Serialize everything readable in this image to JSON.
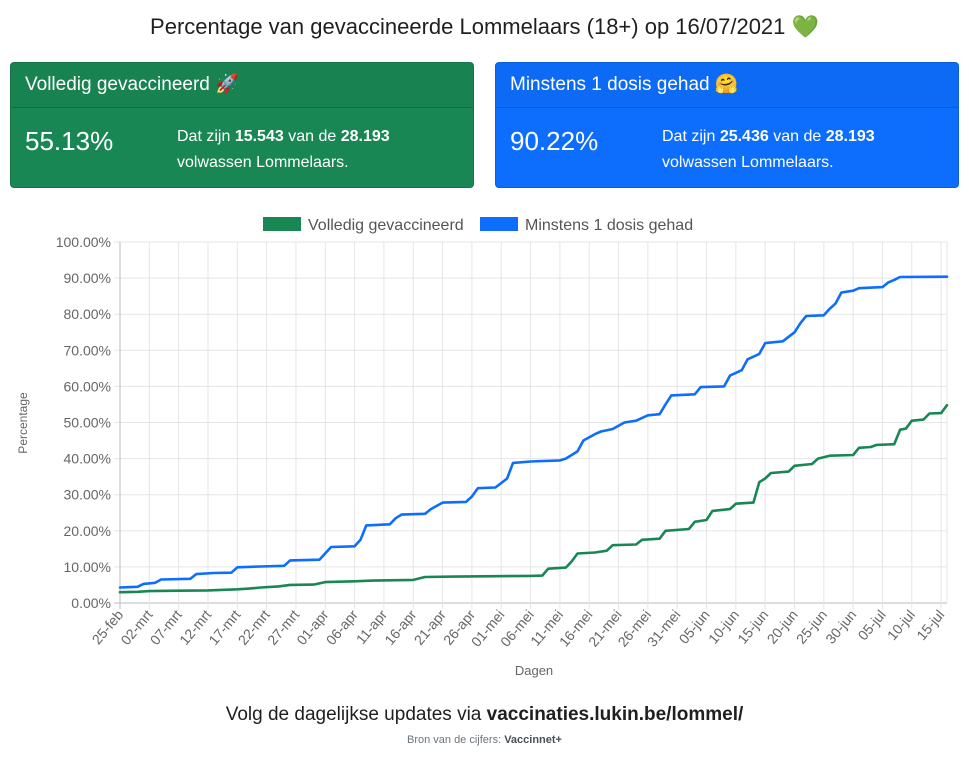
{
  "title": "Percentage van gevaccineerde Lommelaars (18+) op 16/07/2021",
  "title_icon": "💚",
  "cards": {
    "full": {
      "header": "Volledig gevaccineerd",
      "icon": "🚀",
      "percentage": "55.13%",
      "desc_prefix": "Dat zijn",
      "count": "15.543",
      "desc_mid": "van de",
      "total": "28.193",
      "desc_suffix": "volwassen Lommelaars.",
      "color": "#198754"
    },
    "one_dose": {
      "header": "Minstens 1 dosis gehad",
      "icon": "🤗",
      "percentage": "90.22%",
      "desc_prefix": "Dat zijn",
      "count": "25.436",
      "desc_mid": "van de",
      "total": "28.193",
      "desc_suffix": "volwassen Lommelaars.",
      "color": "#0d6efd"
    }
  },
  "footer": {
    "text": "Volg de dagelijkse updates via",
    "link": "vaccinaties.lukin.be/lommel/",
    "source_label": "Bron van de cijfers:",
    "source": "Vaccinnet+"
  },
  "chart_data": {
    "type": "line",
    "xlabel": "Dagen",
    "ylabel": "Percentage",
    "ylim": [
      0,
      100
    ],
    "yticks": [
      "0.00%",
      "10.00%",
      "20.00%",
      "30.00%",
      "40.00%",
      "50.00%",
      "60.00%",
      "70.00%",
      "80.00%",
      "90.00%",
      "100.00%"
    ],
    "x_ticks": [
      "25-feb",
      "02-mrt",
      "07-mrt",
      "12-mrt",
      "17-mrt",
      "22-mrt",
      "27-mrt",
      "01-apr",
      "06-apr",
      "11-apr",
      "16-apr",
      "21-apr",
      "26-apr",
      "01-mei",
      "06-mei",
      "11-mei",
      "16-mei",
      "21-mei",
      "26-mei",
      "31-mei",
      "05-jun",
      "10-jun",
      "15-jun",
      "20-jun",
      "25-jun",
      "30-jun",
      "05-jul",
      "10-jul",
      "15-jul"
    ],
    "x_range_days": [
      0,
      141
    ],
    "grid": true,
    "legend_position": "top",
    "series": [
      {
        "name": "Volledig gevaccineerd",
        "color": "#198754",
        "points": [
          [
            0,
            3.0
          ],
          [
            3,
            3.1
          ],
          [
            5,
            3.3
          ],
          [
            10,
            3.4
          ],
          [
            15,
            3.5
          ],
          [
            20,
            3.8
          ],
          [
            22,
            4.0
          ],
          [
            24,
            4.3
          ],
          [
            27,
            4.6
          ],
          [
            29,
            5.0
          ],
          [
            33,
            5.1
          ],
          [
            35,
            5.8
          ],
          [
            40,
            6.0
          ],
          [
            43,
            6.2
          ],
          [
            50,
            6.4
          ],
          [
            52,
            7.2
          ],
          [
            57,
            7.3
          ],
          [
            62,
            7.4
          ],
          [
            70,
            7.5
          ],
          [
            72,
            7.6
          ],
          [
            73,
            9.5
          ],
          [
            76,
            9.8
          ],
          [
            77,
            11.5
          ],
          [
            78,
            13.7
          ],
          [
            81,
            14.0
          ],
          [
            83,
            14.5
          ],
          [
            84,
            16.0
          ],
          [
            88,
            16.2
          ],
          [
            89,
            17.5
          ],
          [
            92,
            17.8
          ],
          [
            93,
            20.0
          ],
          [
            97,
            20.5
          ],
          [
            98,
            22.5
          ],
          [
            100,
            23.0
          ],
          [
            101,
            25.5
          ],
          [
            104,
            26.0
          ],
          [
            105,
            27.5
          ],
          [
            108,
            27.8
          ],
          [
            109,
            33.5
          ],
          [
            110,
            34.5
          ],
          [
            111,
            36.0
          ],
          [
            114,
            36.4
          ],
          [
            115,
            38.0
          ],
          [
            118,
            38.5
          ],
          [
            119,
            40.0
          ],
          [
            121,
            40.8
          ],
          [
            125,
            41.0
          ],
          [
            126,
            43.0
          ],
          [
            128,
            43.2
          ],
          [
            129,
            43.8
          ],
          [
            132,
            44.0
          ],
          [
            133,
            48.0
          ],
          [
            134,
            48.3
          ],
          [
            135,
            50.5
          ],
          [
            137,
            50.8
          ],
          [
            138,
            52.5
          ],
          [
            140,
            52.6
          ],
          [
            141,
            54.8
          ]
        ]
      },
      {
        "name": "Minstens 1 dosis gehad",
        "color": "#0d6efd",
        "points": [
          [
            0,
            4.3
          ],
          [
            3,
            4.5
          ],
          [
            4,
            5.3
          ],
          [
            6,
            5.6
          ],
          [
            7,
            6.5
          ],
          [
            12,
            6.7
          ],
          [
            13,
            8.0
          ],
          [
            16,
            8.3
          ],
          [
            19,
            8.4
          ],
          [
            20,
            9.9
          ],
          [
            24,
            10.1
          ],
          [
            28,
            10.3
          ],
          [
            29,
            11.8
          ],
          [
            34,
            12.0
          ],
          [
            36,
            15.5
          ],
          [
            40,
            15.7
          ],
          [
            41,
            17.5
          ],
          [
            42,
            21.5
          ],
          [
            46,
            21.8
          ],
          [
            47,
            23.5
          ],
          [
            48,
            24.5
          ],
          [
            52,
            24.7
          ],
          [
            53,
            26.0
          ],
          [
            55,
            27.8
          ],
          [
            59,
            28.0
          ],
          [
            60,
            29.5
          ],
          [
            61,
            31.8
          ],
          [
            64,
            32.0
          ],
          [
            66,
            34.5
          ],
          [
            67,
            38.8
          ],
          [
            70,
            39.2
          ],
          [
            75,
            39.5
          ],
          [
            76,
            40.0
          ],
          [
            78,
            42.0
          ],
          [
            79,
            45.0
          ],
          [
            81,
            46.8
          ],
          [
            82,
            47.5
          ],
          [
            84,
            48.2
          ],
          [
            86,
            50.0
          ],
          [
            88,
            50.5
          ],
          [
            90,
            52.0
          ],
          [
            92,
            52.3
          ],
          [
            93,
            55.0
          ],
          [
            94,
            57.5
          ],
          [
            98,
            57.8
          ],
          [
            99,
            59.8
          ],
          [
            103,
            60.0
          ],
          [
            104,
            63.0
          ],
          [
            106,
            64.5
          ],
          [
            107,
            67.5
          ],
          [
            109,
            69.0
          ],
          [
            110,
            72.0
          ],
          [
            113,
            72.5
          ],
          [
            115,
            75.0
          ],
          [
            116,
            77.5
          ],
          [
            117,
            79.5
          ],
          [
            120,
            79.7
          ],
          [
            121,
            81.5
          ],
          [
            122,
            83.0
          ],
          [
            123,
            86.0
          ],
          [
            125,
            86.5
          ],
          [
            126,
            87.2
          ],
          [
            130,
            87.5
          ],
          [
            131,
            88.8
          ],
          [
            132,
            89.5
          ],
          [
            133,
            90.3
          ],
          [
            141,
            90.4
          ]
        ]
      }
    ]
  }
}
